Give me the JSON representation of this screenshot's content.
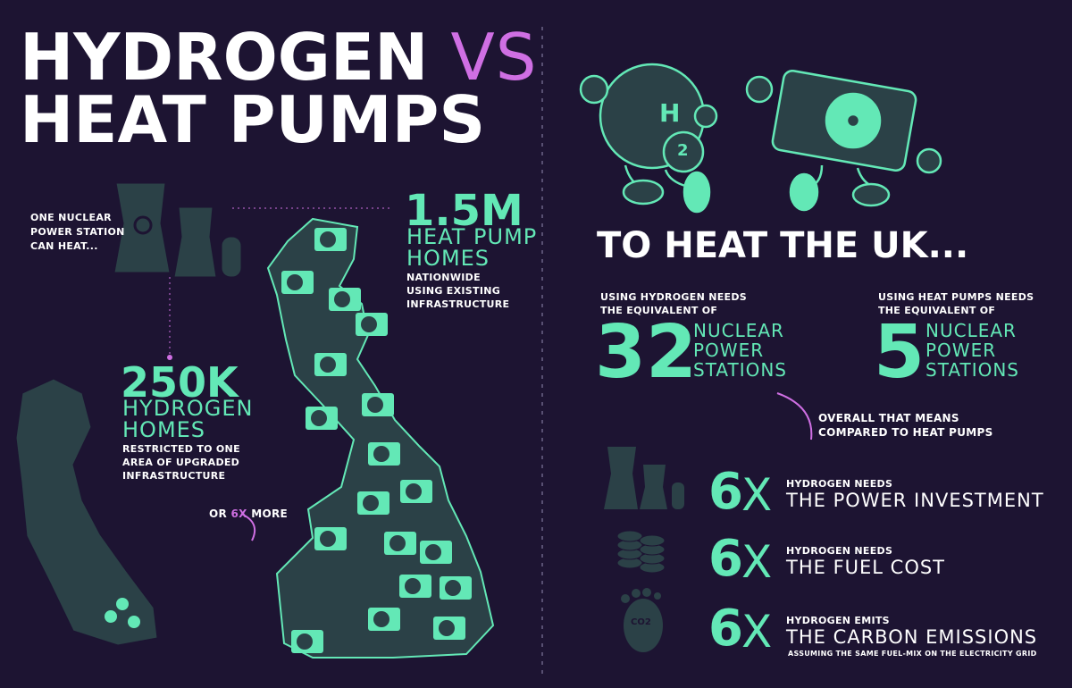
{
  "title": {
    "line1": "HYDROGEN",
    "versus": "VS",
    "line2": "HEAT PUMPS"
  },
  "left": {
    "station_caption": [
      "ONE NUCLEAR",
      "POWER STATION",
      "CAN HEAT..."
    ],
    "heat_pump": {
      "figure": "1.5M",
      "label": [
        "HEAT PUMP",
        "HOMES"
      ],
      "note": [
        "NATIONWIDE",
        "USING EXISTING",
        "INFRASTRUCTURE"
      ]
    },
    "hydrogen": {
      "figure": "250K",
      "label": [
        "HYDROGEN",
        "HOMES"
      ],
      "note": [
        "RESTRICTED TO ONE",
        "AREA OF UPGRADED",
        "INFRASTRUCTURE"
      ]
    },
    "comparison": {
      "prefix": "OR",
      "highlight": "6X",
      "suffix": "MORE"
    }
  },
  "right": {
    "character_label": {
      "letter": "H",
      "digit": "2"
    },
    "heading": "TO HEAT THE UK...",
    "hydrogen_need": {
      "intro": [
        "USING HYDROGEN NEEDS",
        "THE EQUIVALENT OF"
      ],
      "figure": "32",
      "unit": [
        "NUCLEAR",
        "POWER",
        "STATIONS"
      ]
    },
    "heat_pump_need": {
      "intro": [
        "USING HEAT PUMPS NEEDS",
        "THE EQUIVALENT OF"
      ],
      "figure": "5",
      "unit": [
        "NUCLEAR",
        "POWER",
        "STATIONS"
      ]
    },
    "summary": [
      "OVERALL THAT MEANS",
      "COMPARED TO HEAT PUMPS"
    ],
    "facts": [
      {
        "number": "6",
        "times": "X",
        "lead": "HYDROGEN NEEDS",
        "text": "THE POWER INVESTMENT"
      },
      {
        "number": "6",
        "times": "X",
        "lead": "HYDROGEN NEEDS",
        "text": "THE FUEL COST"
      },
      {
        "number": "6",
        "times": "X",
        "lead": "HYDROGEN EMITS",
        "text": "THE CARBON EMISSIONS",
        "note": "ASSUMING THE SAME FUEL-MIX ON THE ELECTRICITY GRID"
      }
    ],
    "footprint_label": "CO2"
  }
}
